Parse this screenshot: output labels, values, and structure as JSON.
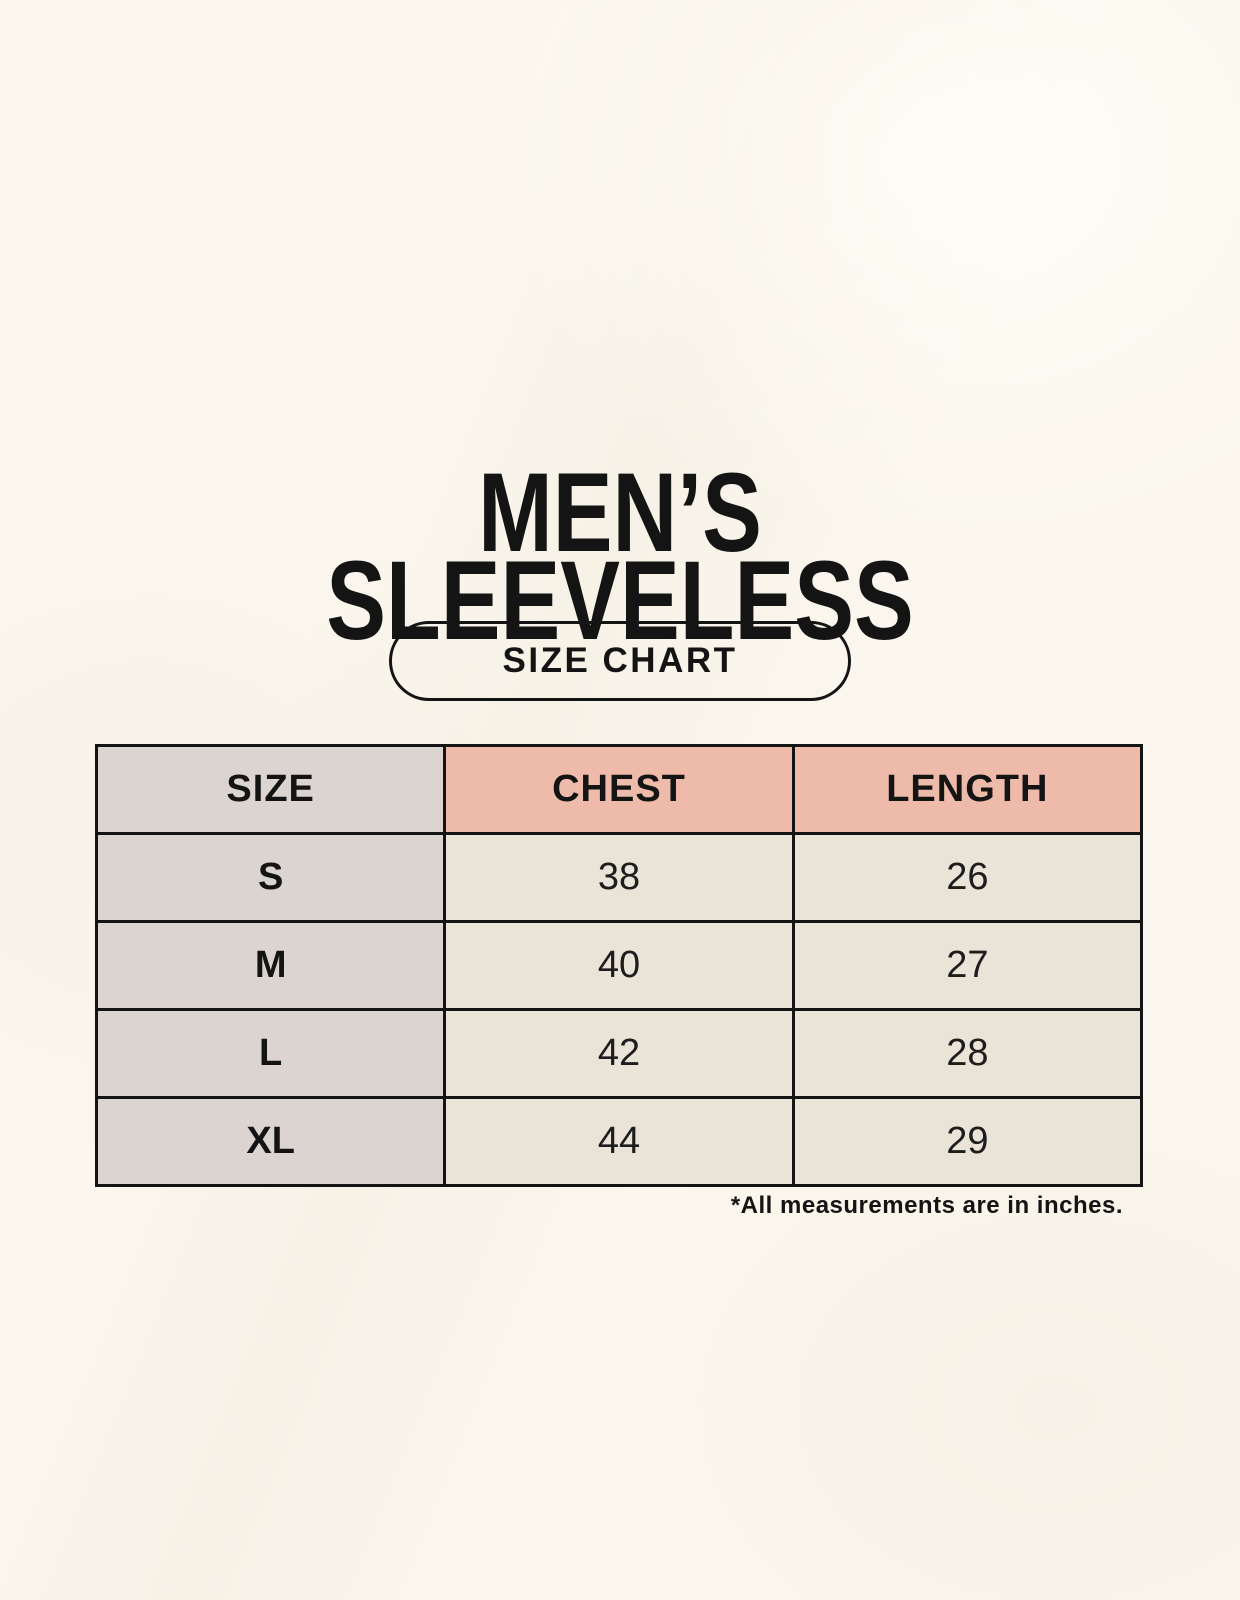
{
  "title": {
    "line1": "MEN’S",
    "line2": "SLEEVELESS"
  },
  "size_chart_button": {
    "label": "SIZE CHART"
  },
  "size_table": {
    "columns": [
      "SIZE",
      "CHEST",
      "LENGTH"
    ],
    "rows": [
      {
        "size": "S",
        "chest": "38",
        "length": "26"
      },
      {
        "size": "M",
        "chest": "40",
        "length": "27"
      },
      {
        "size": "L",
        "chest": "42",
        "length": "28"
      },
      {
        "size": "XL",
        "chest": "44",
        "length": "29"
      }
    ]
  },
  "footnote": "*All measurements are in inches.",
  "chart_data": {
    "type": "table",
    "title": "MEN’S SLEEVELESS — SIZE CHART",
    "columns": [
      "SIZE",
      "CHEST",
      "LENGTH"
    ],
    "rows": [
      [
        "S",
        38,
        26
      ],
      [
        "M",
        40,
        27
      ],
      [
        "L",
        42,
        28
      ],
      [
        "XL",
        44,
        29
      ]
    ],
    "units_note": "*All measurements are in inches."
  },
  "colors": {
    "background": "#fbf7ee",
    "header_accent_pink": "#eebbaa",
    "size_column_gray": "#dbd4d0",
    "value_cell_beige": "#e9e3d8",
    "border_black": "#141414",
    "text": "#141414"
  }
}
